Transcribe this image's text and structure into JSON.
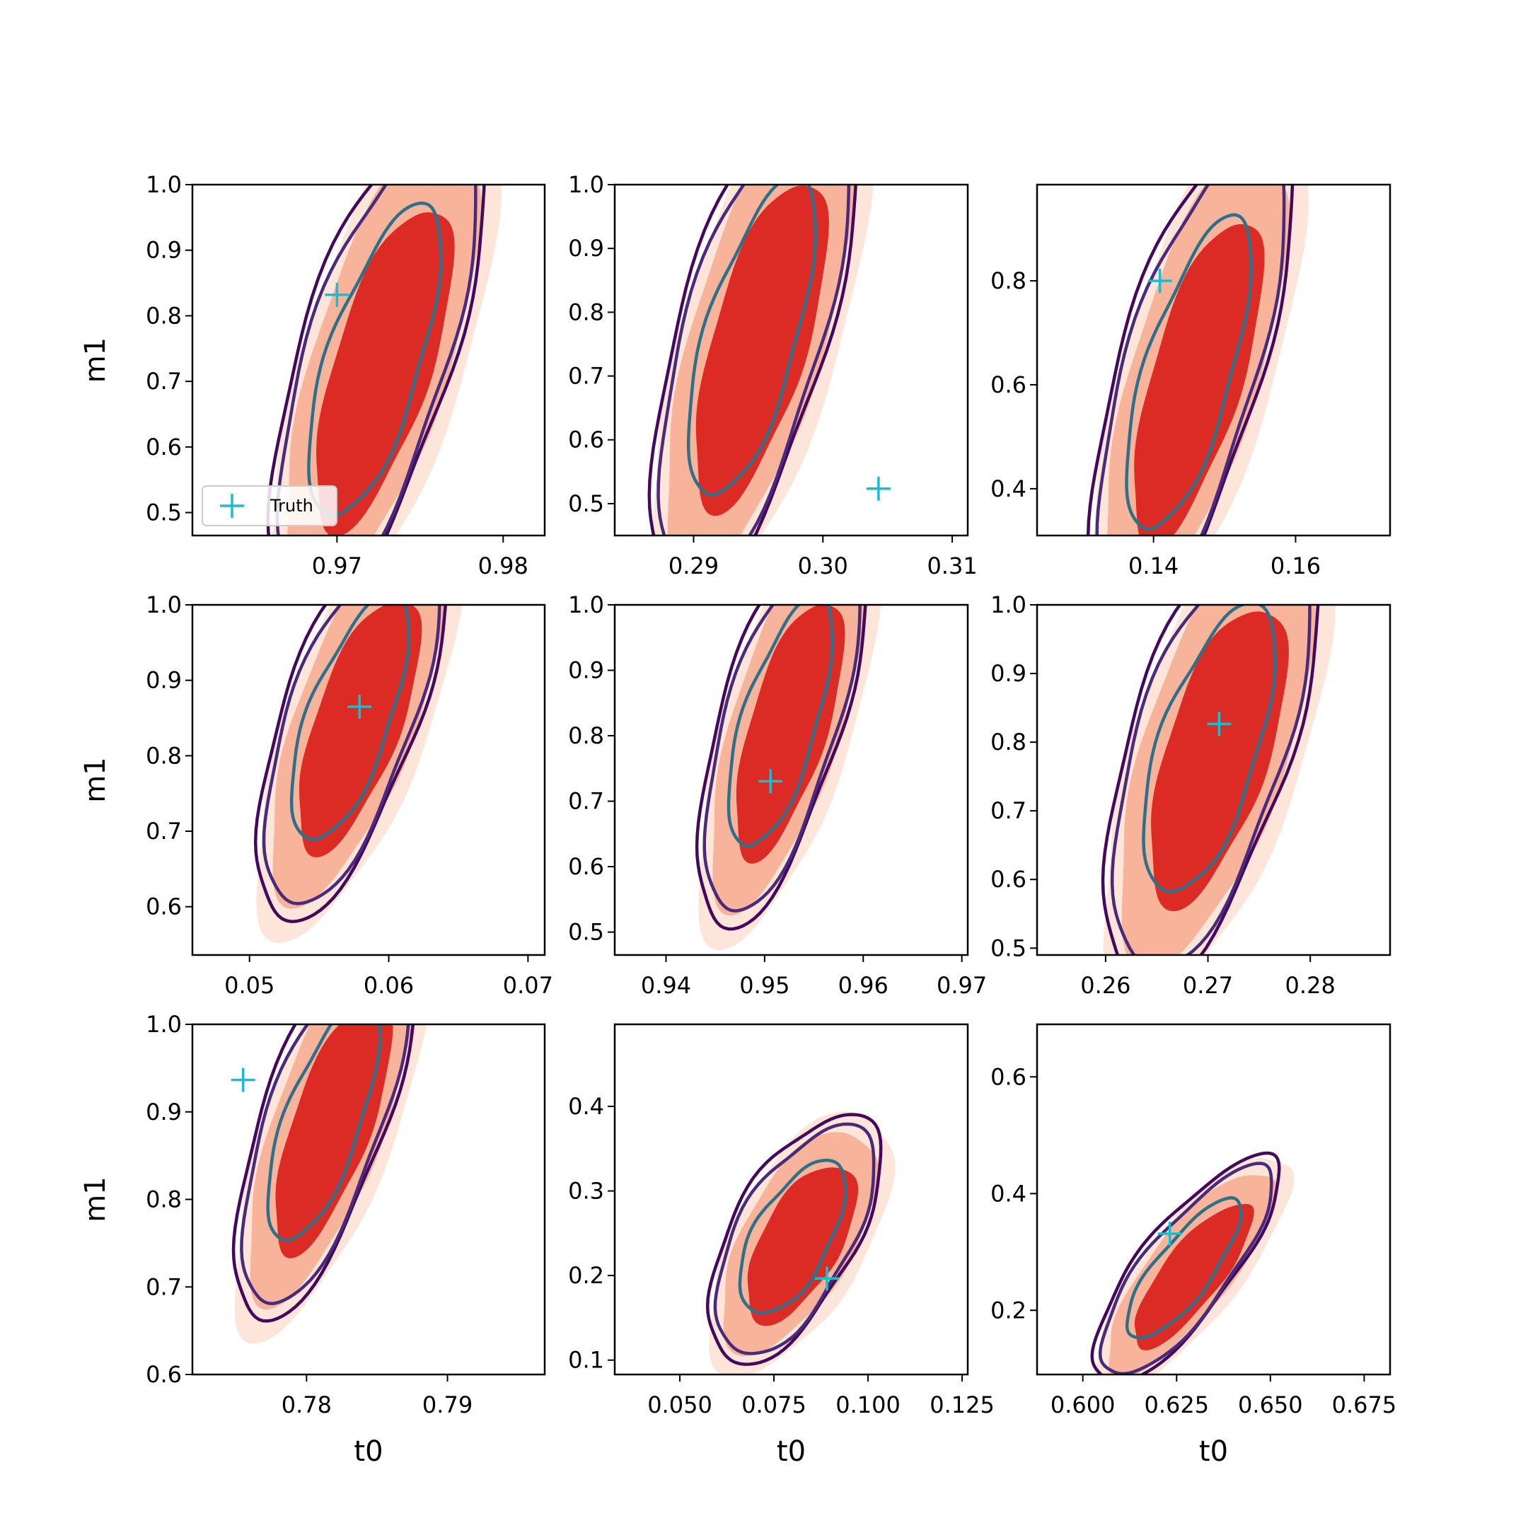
{
  "figure": {
    "ylabel": "m1",
    "xlabel": "t0"
  },
  "legend": {
    "label": "Truth",
    "marker_color": "#17becf"
  },
  "colors": {
    "fill_outer": "#fde5d9",
    "fill_mid": "#f8b49a",
    "fill_inner": "#dc2a24",
    "contour_outer": "#45085c",
    "contour_mid": "#4a2a7a",
    "contour_inner": "#2e7089",
    "truth": "#17becf"
  },
  "chart_data": [
    {
      "type": "contour",
      "xlabel": "",
      "ylabel": "m1",
      "xlim": [
        0.9613,
        0.9825
      ],
      "ylim": [
        0.465,
        1.0
      ],
      "xticks": [
        {
          "v": 0.97,
          "t": "0.97"
        },
        {
          "v": 0.98,
          "t": "0.98"
        }
      ],
      "yticks": [
        {
          "v": 0.5,
          "t": "0.5"
        },
        {
          "v": 0.6,
          "t": "0.6"
        },
        {
          "v": 0.7,
          "t": "0.7"
        },
        {
          "v": 0.8,
          "t": "0.8"
        },
        {
          "v": 0.9,
          "t": "0.9"
        },
        {
          "v": 1.0,
          "t": "1.0"
        }
      ],
      "truth": [
        0.97,
        0.832
      ],
      "center": [
        0.9725,
        0.73
      ],
      "tilt": -0.78,
      "spread": [
        0.0034,
        0.16
      ],
      "legend": true
    },
    {
      "type": "contour",
      "xlabel": "",
      "ylabel": "",
      "xlim": [
        0.2839,
        0.3112
      ],
      "ylim": [
        0.45,
        1.0
      ],
      "xticks": [
        {
          "v": 0.29,
          "t": "0.29"
        },
        {
          "v": 0.3,
          "t": "0.30"
        },
        {
          "v": 0.31,
          "t": "0.31"
        }
      ],
      "yticks": [
        {
          "v": 0.5,
          "t": "0.5"
        },
        {
          "v": 0.6,
          "t": "0.6"
        },
        {
          "v": 0.7,
          "t": "0.7"
        },
        {
          "v": 0.8,
          "t": "0.8"
        },
        {
          "v": 0.9,
          "t": "0.9"
        },
        {
          "v": 1.0,
          "t": "1.0"
        }
      ],
      "truth": [
        0.3043,
        0.5235
      ],
      "center": [
        0.2948,
        0.76
      ],
      "tilt": -0.8,
      "spread": [
        0.0042,
        0.17
      ],
      "legend": false
    },
    {
      "type": "contour",
      "xlabel": "",
      "ylabel": "",
      "xlim": [
        0.1236,
        0.1733
      ],
      "ylim": [
        0.31,
        0.985
      ],
      "xticks": [
        {
          "v": 0.14,
          "t": "0.14"
        },
        {
          "v": 0.16,
          "t": "0.16"
        }
      ],
      "yticks": [
        {
          "v": 0.4,
          "t": "0.4"
        },
        {
          "v": 0.6,
          "t": "0.6"
        },
        {
          "v": 0.8,
          "t": "0.8"
        }
      ],
      "truth": [
        0.1409,
        0.8
      ],
      "center": [
        0.1455,
        0.62
      ],
      "tilt": -0.82,
      "spread": [
        0.0075,
        0.2
      ],
      "legend": false
    },
    {
      "type": "contour",
      "xlabel": "",
      "ylabel": "m1",
      "xlim": [
        0.0459,
        0.0712
      ],
      "ylim": [
        0.536,
        1.0
      ],
      "xticks": [
        {
          "v": 0.05,
          "t": "0.05"
        },
        {
          "v": 0.06,
          "t": "0.06"
        },
        {
          "v": 0.07,
          "t": "0.07"
        }
      ],
      "yticks": [
        {
          "v": 0.6,
          "t": "0.6"
        },
        {
          "v": 0.7,
          "t": "0.7"
        },
        {
          "v": 0.8,
          "t": "0.8"
        },
        {
          "v": 0.9,
          "t": "0.9"
        },
        {
          "v": 1.0,
          "t": "1.0"
        }
      ],
      "truth": [
        0.0579,
        0.865
      ],
      "center": [
        0.0575,
        0.85
      ],
      "tilt": -0.72,
      "spread": [
        0.0036,
        0.11
      ],
      "legend": false
    },
    {
      "type": "contour",
      "xlabel": "",
      "ylabel": "",
      "xlim": [
        0.9348,
        0.9706
      ],
      "ylim": [
        0.465,
        1.0
      ],
      "xticks": [
        {
          "v": 0.94,
          "t": "0.94"
        },
        {
          "v": 0.95,
          "t": "0.95"
        },
        {
          "v": 0.96,
          "t": "0.96"
        },
        {
          "v": 0.97,
          "t": "0.97"
        }
      ],
      "yticks": [
        {
          "v": 0.5,
          "t": "0.5"
        },
        {
          "v": 0.6,
          "t": "0.6"
        },
        {
          "v": 0.7,
          "t": "0.7"
        },
        {
          "v": 0.8,
          "t": "0.8"
        },
        {
          "v": 0.9,
          "t": "0.9"
        },
        {
          "v": 1.0,
          "t": "1.0"
        }
      ],
      "truth": [
        0.9506,
        0.7305
      ],
      "center": [
        0.952,
        0.82
      ],
      "tilt": -0.78,
      "spread": [
        0.0045,
        0.13
      ],
      "legend": false
    },
    {
      "type": "contour",
      "xlabel": "",
      "ylabel": "",
      "xlim": [
        0.2533,
        0.2878
      ],
      "ylim": [
        0.49,
        1.0
      ],
      "xticks": [
        {
          "v": 0.26,
          "t": "0.26"
        },
        {
          "v": 0.27,
          "t": "0.27"
        },
        {
          "v": 0.28,
          "t": "0.28"
        }
      ],
      "yticks": [
        {
          "v": 0.5,
          "t": "0.5"
        },
        {
          "v": 0.6,
          "t": "0.6"
        },
        {
          "v": 0.7,
          "t": "0.7"
        },
        {
          "v": 0.8,
          "t": "0.8"
        },
        {
          "v": 0.9,
          "t": "0.9"
        },
        {
          "v": 1.0,
          "t": "1.0"
        }
      ],
      "truth": [
        0.2711,
        0.8265
      ],
      "center": [
        0.2705,
        0.79
      ],
      "tilt": -0.7,
      "spread": [
        0.0055,
        0.15
      ],
      "legend": false
    },
    {
      "type": "contour",
      "xlabel": "t0",
      "ylabel": "m1",
      "xlim": [
        0.7719,
        0.7969
      ],
      "ylim": [
        0.6,
        1.0
      ],
      "xticks": [
        {
          "v": 0.78,
          "t": "0.78"
        },
        {
          "v": 0.79,
          "t": "0.79"
        }
      ],
      "yticks": [
        {
          "v": 0.6,
          "t": "0.6"
        },
        {
          "v": 0.7,
          "t": "0.7"
        },
        {
          "v": 0.8,
          "t": "0.8"
        },
        {
          "v": 0.9,
          "t": "0.9"
        },
        {
          "v": 1.0,
          "t": "1.0"
        }
      ],
      "truth": [
        0.7755,
        0.9365
      ],
      "center": [
        0.7815,
        0.89
      ],
      "tilt": -0.76,
      "spread": [
        0.0034,
        0.09
      ],
      "legend": false
    },
    {
      "type": "contour",
      "xlabel": "t0",
      "ylabel": "",
      "xlim": [
        0.0327,
        0.1265
      ],
      "ylim": [
        0.083,
        0.497
      ],
      "xticks": [
        {
          "v": 0.05,
          "t": "0.050"
        },
        {
          "v": 0.075,
          "t": "0.075"
        },
        {
          "v": 0.1,
          "t": "0.100"
        },
        {
          "v": 0.125,
          "t": "0.125"
        }
      ],
      "yticks": [
        {
          "v": 0.1,
          "t": "0.1"
        },
        {
          "v": 0.2,
          "t": "0.2"
        },
        {
          "v": 0.3,
          "t": "0.3"
        },
        {
          "v": 0.4,
          "t": "0.4"
        }
      ],
      "truth": [
        0.0891,
        0.1965
      ],
      "center": [
        0.081,
        0.245
      ],
      "tilt": -0.5,
      "spread": [
        0.012,
        0.065
      ],
      "legend": false
    },
    {
      "type": "contour",
      "xlabel": "t0",
      "ylabel": "",
      "xlim": [
        0.5878,
        0.6819
      ],
      "ylim": [
        0.09,
        0.69
      ],
      "xticks": [
        {
          "v": 0.6,
          "t": "0.600"
        },
        {
          "v": 0.625,
          "t": "0.625"
        },
        {
          "v": 0.65,
          "t": "0.650"
        },
        {
          "v": 0.675,
          "t": "0.675"
        }
      ],
      "yticks": [
        {
          "v": 0.2,
          "t": "0.2"
        },
        {
          "v": 0.4,
          "t": "0.4"
        },
        {
          "v": 0.6,
          "t": "0.6"
        }
      ],
      "truth": [
        0.6232,
        0.3312
      ],
      "center": [
        0.628,
        0.27
      ],
      "tilt": -0.55,
      "spread": [
        0.013,
        0.065
      ],
      "legend": false
    }
  ]
}
